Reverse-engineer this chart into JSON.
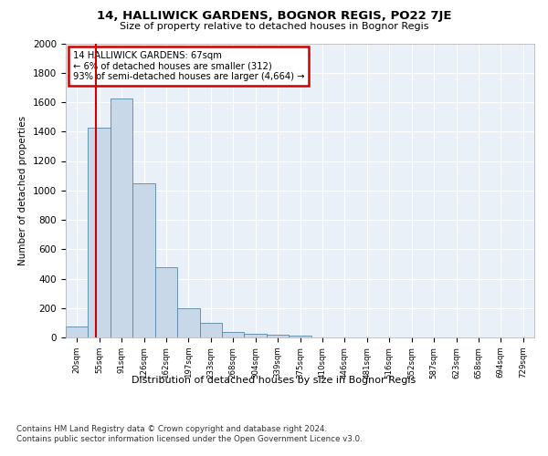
{
  "title1": "14, HALLIWICK GARDENS, BOGNOR REGIS, PO22 7JE",
  "title2": "Size of property relative to detached houses in Bognor Regis",
  "xlabel": "Distribution of detached houses by size in Bognor Regis",
  "ylabel": "Number of detached properties",
  "bin_labels": [
    "20sqm",
    "55sqm",
    "91sqm",
    "126sqm",
    "162sqm",
    "197sqm",
    "233sqm",
    "268sqm",
    "304sqm",
    "339sqm",
    "375sqm",
    "410sqm",
    "446sqm",
    "481sqm",
    "516sqm",
    "552sqm",
    "587sqm",
    "623sqm",
    "658sqm",
    "694sqm",
    "729sqm"
  ],
  "bar_heights": [
    75,
    1425,
    1625,
    1050,
    475,
    200,
    100,
    40,
    25,
    20,
    15,
    0,
    0,
    0,
    0,
    0,
    0,
    0,
    0,
    0,
    0
  ],
  "bar_color": "#c8d8e8",
  "bar_edge_color": "#5588aa",
  "subject_line_color": "#cc0000",
  "annotation_text": "14 HALLIWICK GARDENS: 67sqm\n← 6% of detached houses are smaller (312)\n93% of semi-detached houses are larger (4,664) →",
  "annotation_box_color": "#cc0000",
  "ylim": [
    0,
    2000
  ],
  "yticks": [
    0,
    200,
    400,
    600,
    800,
    1000,
    1200,
    1400,
    1600,
    1800,
    2000
  ],
  "footer_line1": "Contains HM Land Registry data © Crown copyright and database right 2024.",
  "footer_line2": "Contains public sector information licensed under the Open Government Licence v3.0.",
  "plot_bg_color": "#eaf0f8"
}
